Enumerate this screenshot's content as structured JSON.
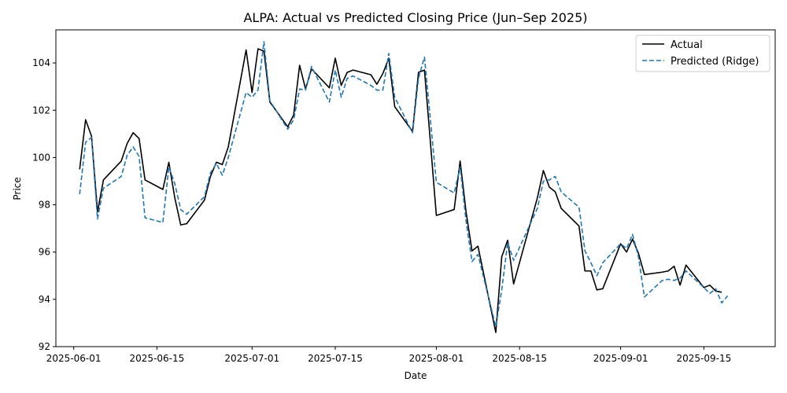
{
  "chart_data": {
    "type": "line",
    "title": "ALPA: Actual vs Predicted Closing Price (Jun–Sep 2025)",
    "xlabel": "Date",
    "ylabel": "Price",
    "xlim": [
      "2025-05-29",
      "2025-09-27"
    ],
    "ylim": [
      92,
      105.4
    ],
    "x_ticks": [
      "2025-06-01",
      "2025-06-15",
      "2025-07-01",
      "2025-07-15",
      "2025-08-01",
      "2025-08-15",
      "2025-09-01",
      "2025-09-15"
    ],
    "y_ticks": [
      92,
      94,
      96,
      98,
      100,
      102,
      104
    ],
    "grid": false,
    "legend_position": "top-right",
    "series": [
      {
        "name": "Actual",
        "color": "#000000",
        "style": "solid",
        "points": [
          [
            "2025-06-02",
            99.5
          ],
          [
            "2025-06-03",
            101.6
          ],
          [
            "2025-06-04",
            100.9
          ],
          [
            "2025-06-05",
            97.7
          ],
          [
            "2025-06-06",
            99.05
          ],
          [
            "2025-06-09",
            99.85
          ],
          [
            "2025-06-10",
            100.6
          ],
          [
            "2025-06-11",
            101.05
          ],
          [
            "2025-06-12",
            100.8
          ],
          [
            "2025-06-13",
            99.05
          ],
          [
            "2025-06-16",
            98.65
          ],
          [
            "2025-06-17",
            99.8
          ],
          [
            "2025-06-18",
            98.3
          ],
          [
            "2025-06-19",
            97.15
          ],
          [
            "2025-06-20",
            97.2
          ],
          [
            "2025-06-23",
            98.2
          ],
          [
            "2025-06-24",
            99.2
          ],
          [
            "2025-06-25",
            99.8
          ],
          [
            "2025-06-26",
            99.7
          ],
          [
            "2025-06-27",
            100.45
          ],
          [
            "2025-06-30",
            104.55
          ],
          [
            "2025-07-01",
            102.75
          ],
          [
            "2025-07-02",
            104.6
          ],
          [
            "2025-07-03",
            104.5
          ],
          [
            "2025-07-04",
            102.35
          ],
          [
            "2025-07-07",
            101.3
          ],
          [
            "2025-07-08",
            101.8
          ],
          [
            "2025-07-09",
            103.9
          ],
          [
            "2025-07-10",
            102.9
          ],
          [
            "2025-07-11",
            103.75
          ],
          [
            "2025-07-14",
            102.95
          ],
          [
            "2025-07-15",
            104.2
          ],
          [
            "2025-07-16",
            103.05
          ],
          [
            "2025-07-17",
            103.6
          ],
          [
            "2025-07-18",
            103.7
          ],
          [
            "2025-07-21",
            103.5
          ],
          [
            "2025-07-22",
            103.1
          ],
          [
            "2025-07-23",
            103.55
          ],
          [
            "2025-07-24",
            104.2
          ],
          [
            "2025-07-25",
            102.15
          ],
          [
            "2025-07-28",
            101.1
          ],
          [
            "2025-07-29",
            103.6
          ],
          [
            "2025-07-30",
            103.7
          ],
          [
            "2025-07-31",
            100.65
          ],
          [
            "2025-08-01",
            97.55
          ],
          [
            "2025-08-04",
            97.8
          ],
          [
            "2025-08-05",
            99.85
          ],
          [
            "2025-08-06",
            97.7
          ],
          [
            "2025-08-07",
            96.05
          ],
          [
            "2025-08-08",
            96.25
          ],
          [
            "2025-08-11",
            92.6
          ],
          [
            "2025-08-12",
            95.8
          ],
          [
            "2025-08-13",
            96.5
          ],
          [
            "2025-08-14",
            94.65
          ],
          [
            "2025-08-18",
            98.3
          ],
          [
            "2025-08-19",
            99.45
          ],
          [
            "2025-08-20",
            98.75
          ],
          [
            "2025-08-21",
            98.55
          ],
          [
            "2025-08-22",
            97.85
          ],
          [
            "2025-08-25",
            97.1
          ],
          [
            "2025-08-26",
            95.2
          ],
          [
            "2025-08-27",
            95.2
          ],
          [
            "2025-08-28",
            94.4
          ],
          [
            "2025-08-29",
            94.45
          ],
          [
            "2025-09-01",
            96.35
          ],
          [
            "2025-09-02",
            96.0
          ],
          [
            "2025-09-03",
            96.55
          ],
          [
            "2025-09-04",
            95.95
          ],
          [
            "2025-09-05",
            95.05
          ],
          [
            "2025-09-08",
            95.15
          ],
          [
            "2025-09-09",
            95.2
          ],
          [
            "2025-09-10",
            95.4
          ],
          [
            "2025-09-11",
            94.6
          ],
          [
            "2025-09-12",
            95.45
          ],
          [
            "2025-09-15",
            94.5
          ],
          [
            "2025-09-16",
            94.6
          ],
          [
            "2025-09-17",
            94.35
          ],
          [
            "2025-09-18",
            94.3
          ]
        ]
      },
      {
        "name": "Predicted (Ridge)",
        "color": "#1f77b4",
        "style": "dashed",
        "points": [
          [
            "2025-06-02",
            98.45
          ],
          [
            "2025-06-03",
            100.65
          ],
          [
            "2025-06-04",
            100.85
          ],
          [
            "2025-06-05",
            97.4
          ],
          [
            "2025-06-06",
            98.7
          ],
          [
            "2025-06-09",
            99.2
          ],
          [
            "2025-06-10",
            100.1
          ],
          [
            "2025-06-11",
            100.45
          ],
          [
            "2025-06-12",
            100.05
          ],
          [
            "2025-06-13",
            97.45
          ],
          [
            "2025-06-16",
            97.25
          ],
          [
            "2025-06-17",
            99.6
          ],
          [
            "2025-06-18",
            98.9
          ],
          [
            "2025-06-19",
            97.8
          ],
          [
            "2025-06-20",
            97.6
          ],
          [
            "2025-06-23",
            98.35
          ],
          [
            "2025-06-24",
            99.35
          ],
          [
            "2025-06-25",
            99.75
          ],
          [
            "2025-06-26",
            99.25
          ],
          [
            "2025-06-27",
            100.0
          ],
          [
            "2025-06-30",
            102.75
          ],
          [
            "2025-07-01",
            102.55
          ],
          [
            "2025-07-02",
            102.85
          ],
          [
            "2025-07-03",
            104.9
          ],
          [
            "2025-07-04",
            102.4
          ],
          [
            "2025-07-07",
            101.2
          ],
          [
            "2025-07-08",
            101.6
          ],
          [
            "2025-07-09",
            102.9
          ],
          [
            "2025-07-10",
            102.85
          ],
          [
            "2025-07-11",
            103.85
          ],
          [
            "2025-07-14",
            102.35
          ],
          [
            "2025-07-15",
            103.7
          ],
          [
            "2025-07-16",
            102.55
          ],
          [
            "2025-07-17",
            103.35
          ],
          [
            "2025-07-18",
            103.45
          ],
          [
            "2025-07-21",
            103.05
          ],
          [
            "2025-07-22",
            102.85
          ],
          [
            "2025-07-23",
            102.85
          ],
          [
            "2025-07-24",
            104.4
          ],
          [
            "2025-07-25",
            102.55
          ],
          [
            "2025-07-28",
            101.05
          ],
          [
            "2025-07-29",
            103.35
          ],
          [
            "2025-07-30",
            104.25
          ],
          [
            "2025-07-31",
            101.6
          ],
          [
            "2025-08-01",
            98.95
          ],
          [
            "2025-08-04",
            98.5
          ],
          [
            "2025-08-05",
            99.6
          ],
          [
            "2025-08-06",
            97.3
          ],
          [
            "2025-08-07",
            95.6
          ],
          [
            "2025-08-08",
            95.9
          ],
          [
            "2025-08-11",
            92.85
          ],
          [
            "2025-08-12",
            94.4
          ],
          [
            "2025-08-13",
            96.4
          ],
          [
            "2025-08-14",
            95.65
          ],
          [
            "2025-08-18",
            97.85
          ],
          [
            "2025-08-19",
            99.0
          ],
          [
            "2025-08-20",
            99.05
          ],
          [
            "2025-08-21",
            99.2
          ],
          [
            "2025-08-22",
            98.55
          ],
          [
            "2025-08-25",
            97.9
          ],
          [
            "2025-08-26",
            96.05
          ],
          [
            "2025-08-27",
            95.55
          ],
          [
            "2025-08-28",
            95.0
          ],
          [
            "2025-08-29",
            95.55
          ],
          [
            "2025-09-01",
            96.35
          ],
          [
            "2025-09-02",
            96.15
          ],
          [
            "2025-09-03",
            96.75
          ],
          [
            "2025-09-04",
            95.8
          ],
          [
            "2025-09-05",
            94.1
          ],
          [
            "2025-09-08",
            94.8
          ],
          [
            "2025-09-09",
            94.85
          ],
          [
            "2025-09-10",
            94.8
          ],
          [
            "2025-09-11",
            94.9
          ],
          [
            "2025-09-12",
            95.2
          ],
          [
            "2025-09-15",
            94.5
          ],
          [
            "2025-09-16",
            94.25
          ],
          [
            "2025-09-17",
            94.45
          ],
          [
            "2025-09-18",
            93.85
          ],
          [
            "2025-09-19",
            94.15
          ]
        ]
      }
    ]
  }
}
